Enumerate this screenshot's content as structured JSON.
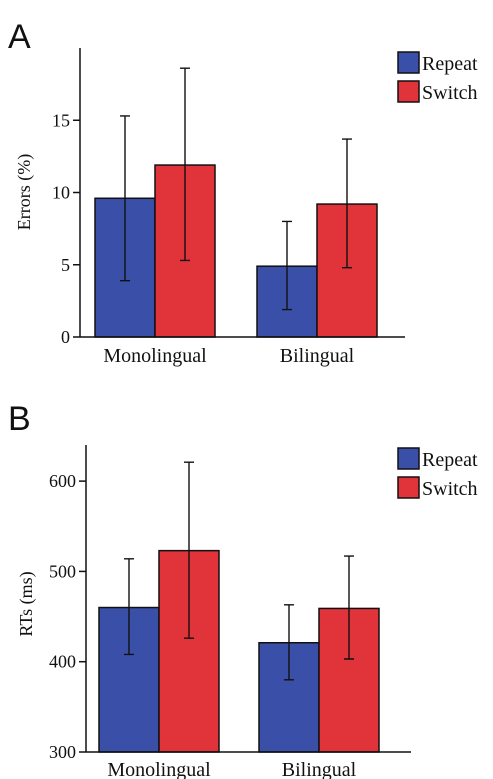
{
  "chart_data": [
    {
      "panel_label": "A",
      "type": "bar",
      "categories": [
        "Monolingual",
        "Bilingual"
      ],
      "ylabel": "Errors (%)",
      "ylim": [
        0,
        20
      ],
      "yticks": [
        0,
        5,
        10,
        15
      ],
      "legend": "top-right",
      "series": [
        {
          "name": "Repeat",
          "color": "#3a50a8",
          "values": [
            9.6,
            4.9
          ],
          "err_low": [
            3.9,
            1.9
          ],
          "err_high": [
            15.3,
            8.0
          ]
        },
        {
          "name": "Switch",
          "color": "#e0333a",
          "values": [
            11.9,
            9.2
          ],
          "err_low": [
            5.3,
            4.8
          ],
          "err_high": [
            18.6,
            13.7
          ]
        }
      ]
    },
    {
      "panel_label": "B",
      "type": "bar",
      "categories": [
        "Monolingual",
        "Bilingual"
      ],
      "ylabel": "RTs (ms)",
      "ylim": [
        300,
        640
      ],
      "yticks": [
        300,
        400,
        500,
        600
      ],
      "legend": "top-right",
      "series": [
        {
          "name": "Repeat",
          "color": "#3a50a8",
          "values": [
            460,
            421
          ],
          "err_low": [
            408,
            380
          ],
          "err_high": [
            514,
            463
          ]
        },
        {
          "name": "Switch",
          "color": "#e0333a",
          "values": [
            523,
            459
          ],
          "err_low": [
            426,
            403
          ],
          "err_high": [
            621,
            517
          ]
        }
      ]
    }
  ]
}
